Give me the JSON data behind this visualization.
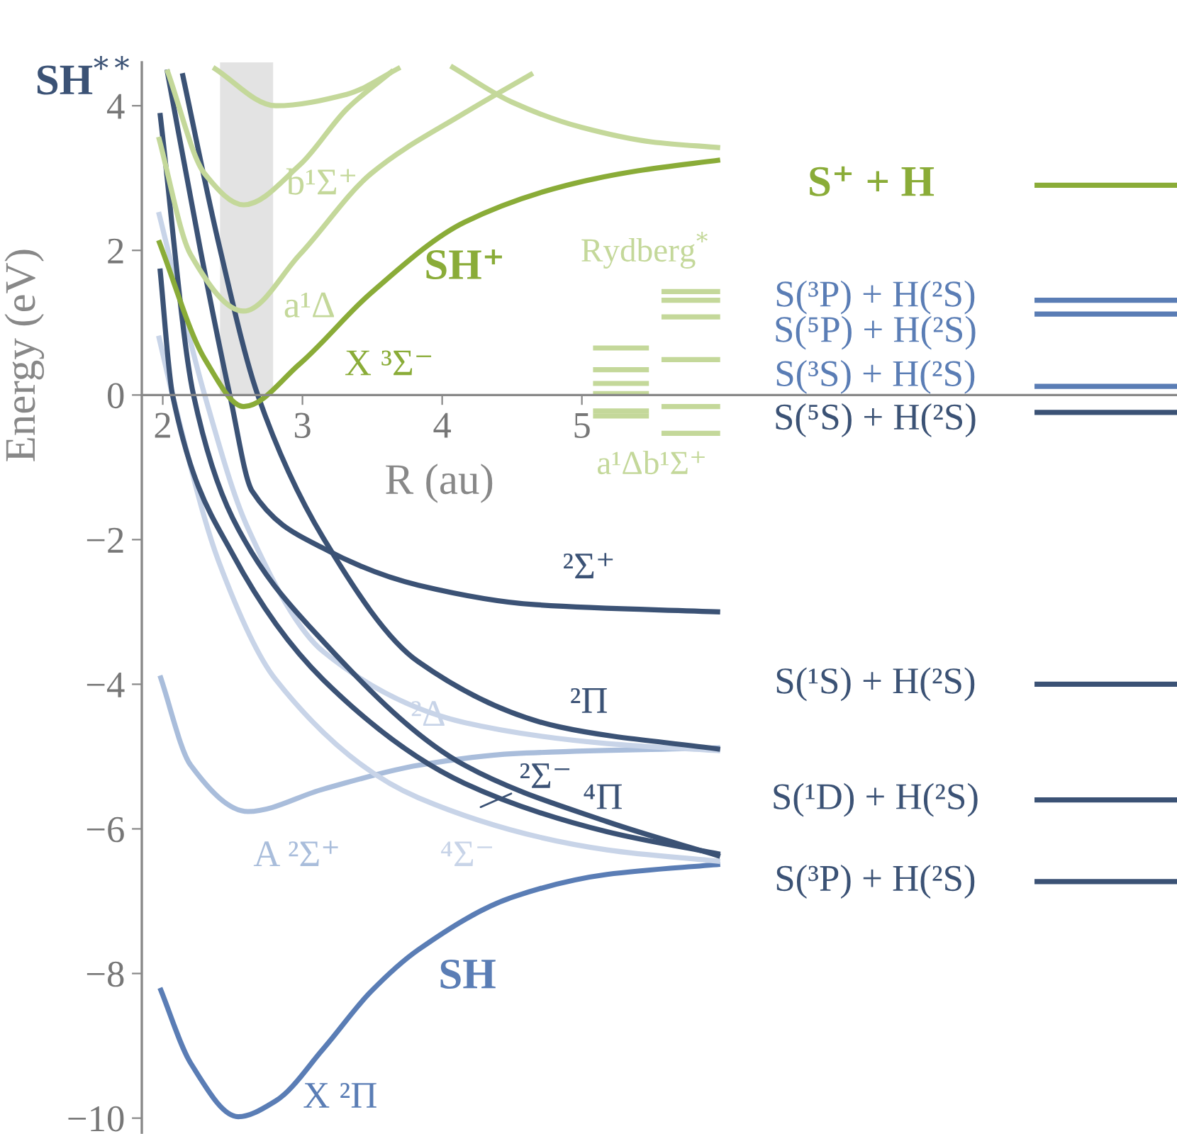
{
  "chart_data": {
    "type": "line",
    "xlabel": "R (au)",
    "ylabel": "Energy (eV)",
    "xlim": [
      1.85,
      9.26
    ],
    "ylim": [
      -10.2,
      4.6
    ],
    "xticks": [
      2,
      3,
      4,
      5
    ],
    "yticks": [
      4,
      2,
      0,
      {
        "value": -2,
        "label": "−2"
      },
      {
        "value": -4,
        "label": "−4"
      },
      {
        "value": -6,
        "label": "−6"
      },
      {
        "value": -8,
        "label": "−8"
      },
      {
        "value": -10,
        "label": "−10"
      }
    ],
    "grid": false,
    "legend": false,
    "bands": [
      {
        "axis": "x",
        "from": 2.41,
        "to": 2.79,
        "color": "#e3e3e3"
      }
    ],
    "series": [
      {
        "color": "#5a7db5",
        "x": [
          1.98,
          2.2,
          2.54,
          2.81,
          3.15,
          3.49,
          3.83,
          4.51,
          5.18,
          5.99
        ],
        "values": [
          -8.2,
          -9.24,
          -9.98,
          -9.76,
          -9.04,
          -8.25,
          -7.67,
          -6.94,
          -6.63,
          -6.49
        ]
      },
      {
        "color": "#a9bddb",
        "x": [
          1.98,
          2.2,
          2.61,
          3.15,
          3.83,
          4.51,
          5.99
        ],
        "values": [
          -3.88,
          -5.12,
          -5.76,
          -5.45,
          -5.12,
          -4.96,
          -4.88
        ]
      },
      {
        "color": "#c8d4e8",
        "x": [
          1.97,
          2.3,
          2.6,
          3.15,
          4.16,
          5.18,
          5.99
        ],
        "values": [
          2.53,
          0,
          -1.8,
          -3.55,
          -4.53,
          -4.82,
          -4.92
        ]
      },
      {
        "color": "#c8d4e8",
        "x": [
          1.97,
          2.07,
          2.4,
          2.81,
          3.83,
          5.18,
          5.99
        ],
        "values": [
          0.82,
          0,
          -2.3,
          -3.94,
          -5.57,
          -6.29,
          -6.45
        ]
      },
      {
        "color": "#3b5275",
        "x": [
          2.03,
          2.27,
          2.48,
          2.64,
          3.15,
          3.83,
          4.67,
          5.99
        ],
        "values": [
          4.5,
          2.0,
          0,
          -1.33,
          -2.12,
          -2.63,
          -2.9,
          -3.0
        ]
      },
      {
        "color": "#3b5275",
        "x": [
          2.14,
          2.4,
          2.68,
          3.15,
          3.83,
          4.84,
          5.99
        ],
        "values": [
          4.45,
          2.1,
          0,
          -1.98,
          -3.69,
          -4.59,
          -4.9
        ]
      },
      {
        "color": "#3b5275",
        "x": [
          1.98,
          2.07,
          2.5,
          3.15,
          4.16,
          5.18,
          5.99
        ],
        "values": [
          1.75,
          0,
          -2.2,
          -3.94,
          -5.37,
          -6.04,
          -6.35
        ]
      },
      {
        "color": "#3b5275",
        "x": [
          1.98,
          2.22,
          2.5,
          3.15,
          4.16,
          5.18,
          5.99
        ],
        "values": [
          3.9,
          0,
          -1.7,
          -3.41,
          -5.12,
          -5.9,
          -6.38
        ]
      },
      {
        "color": "#8aac38",
        "x": [
          1.97,
          2.3,
          2.58,
          2.98,
          3.49,
          4.16,
          4.89,
          5.4,
          5.99
        ],
        "values": [
          2.14,
          0.5,
          -0.16,
          0.43,
          1.41,
          2.39,
          2.9,
          3.1,
          3.25
        ]
      },
      {
        "color": "#c4d89a",
        "x": [
          1.97,
          2.2,
          2.58,
          2.98,
          3.49,
          4.16,
          4.65
        ],
        "values": [
          3.57,
          1.94,
          1.16,
          1.94,
          3.06,
          3.9,
          4.45
        ]
      },
      {
        "color": "#c4d89a",
        "x": [
          2.03,
          2.3,
          2.58,
          2.98,
          3.32,
          3.65
        ],
        "values": [
          4.5,
          3.06,
          2.63,
          3.18,
          3.96,
          4.49
        ]
      },
      {
        "color": "#c4d89a",
        "x": [
          2.36,
          2.81,
          3.32,
          3.7
        ],
        "values": [
          4.53,
          4.0,
          4.16,
          4.53
        ]
      },
      {
        "color": "#c4d89a",
        "x": [
          4.06,
          4.5,
          5.0,
          5.5,
          5.99
        ],
        "values": [
          4.55,
          4.05,
          3.7,
          3.5,
          3.42
        ]
      },
      {
        "color": "#c4d89a",
        "x": [
          5.08,
          5.48
        ],
        "values": [
          0.65,
          0.65
        ]
      },
      {
        "color": "#c4d89a",
        "x": [
          5.08,
          5.48
        ],
        "values": [
          0.35,
          0.35
        ]
      },
      {
        "color": "#c4d89a",
        "x": [
          5.08,
          5.48
        ],
        "values": [
          0.16,
          0.16
        ]
      },
      {
        "color": "#c4d89a",
        "x": [
          5.08,
          5.48
        ],
        "values": [
          0.02,
          0.02
        ]
      },
      {
        "color": "#c4d89a",
        "x": [
          5.08,
          5.48
        ],
        "values": [
          -0.22,
          -0.22
        ]
      },
      {
        "color": "#c4d89a",
        "x": [
          5.08,
          5.48
        ],
        "values": [
          -0.29,
          -0.29
        ]
      },
      {
        "color": "#c4d89a",
        "x": [
          5.57,
          5.99
        ],
        "values": [
          1.43,
          1.43
        ]
      },
      {
        "color": "#c4d89a",
        "x": [
          5.57,
          5.99
        ],
        "values": [
          1.31,
          1.31
        ]
      },
      {
        "color": "#c4d89a",
        "x": [
          5.57,
          5.99
        ],
        "values": [
          1.08,
          1.08
        ]
      },
      {
        "color": "#c4d89a",
        "x": [
          5.57,
          5.99
        ],
        "values": [
          0.49,
          0.49
        ]
      },
      {
        "color": "#c4d89a",
        "x": [
          5.57,
          5.99
        ],
        "values": [
          -0.16,
          -0.16
        ]
      },
      {
        "color": "#c4d89a",
        "x": [
          5.57,
          5.99
        ],
        "values": [
          -0.53,
          -0.53
        ]
      },
      {
        "color": "#8aac38",
        "x": [
          8.24,
          9.26
        ],
        "values": [
          2.9,
          2.9
        ]
      },
      {
        "color": "#5a7db5",
        "x": [
          8.24,
          9.26
        ],
        "values": [
          1.31,
          1.31
        ]
      },
      {
        "color": "#5a7db5",
        "x": [
          8.24,
          9.26
        ],
        "values": [
          1.12,
          1.12
        ]
      },
      {
        "color": "#5a7db5",
        "x": [
          8.24,
          9.26
        ],
        "values": [
          0.12,
          0.12
        ]
      },
      {
        "color": "#3b5275",
        "x": [
          8.24,
          9.26
        ],
        "values": [
          -0.24,
          -0.24
        ]
      },
      {
        "color": "#3b5275",
        "x": [
          8.24,
          9.26
        ],
        "values": [
          -4.0,
          -4.0
        ]
      },
      {
        "color": "#3b5275",
        "x": [
          8.24,
          9.26
        ],
        "values": [
          -5.6,
          -5.6
        ]
      },
      {
        "color": "#3b5275",
        "x": [
          8.24,
          9.26
        ],
        "values": [
          -6.73,
          -6.73
        ]
      }
    ],
    "annotations": [
      "SH$^{**}$",
      "SH⁺",
      "X ³Σ⁻",
      "a¹Δ",
      "b¹Σ⁺",
      "Rydberg$^{*}$",
      "a¹Δb¹Σ⁺",
      "²Σ⁺",
      "²Π",
      "²Δ",
      "²Σ⁻",
      "⁴Π",
      "A ²Σ⁺",
      "⁴Σ⁻",
      "SH",
      "X ²Π",
      "S⁺ + H",
      "S(³P) + H(²S)",
      "S(⁵P) + H(²S)",
      "S(³S) + H(²S)",
      "S(⁵S) + H(²S)",
      "S(¹S) + H(²S)",
      "S(¹D) + H(²S)",
      "S(³P) + H(²S)"
    ]
  }
}
